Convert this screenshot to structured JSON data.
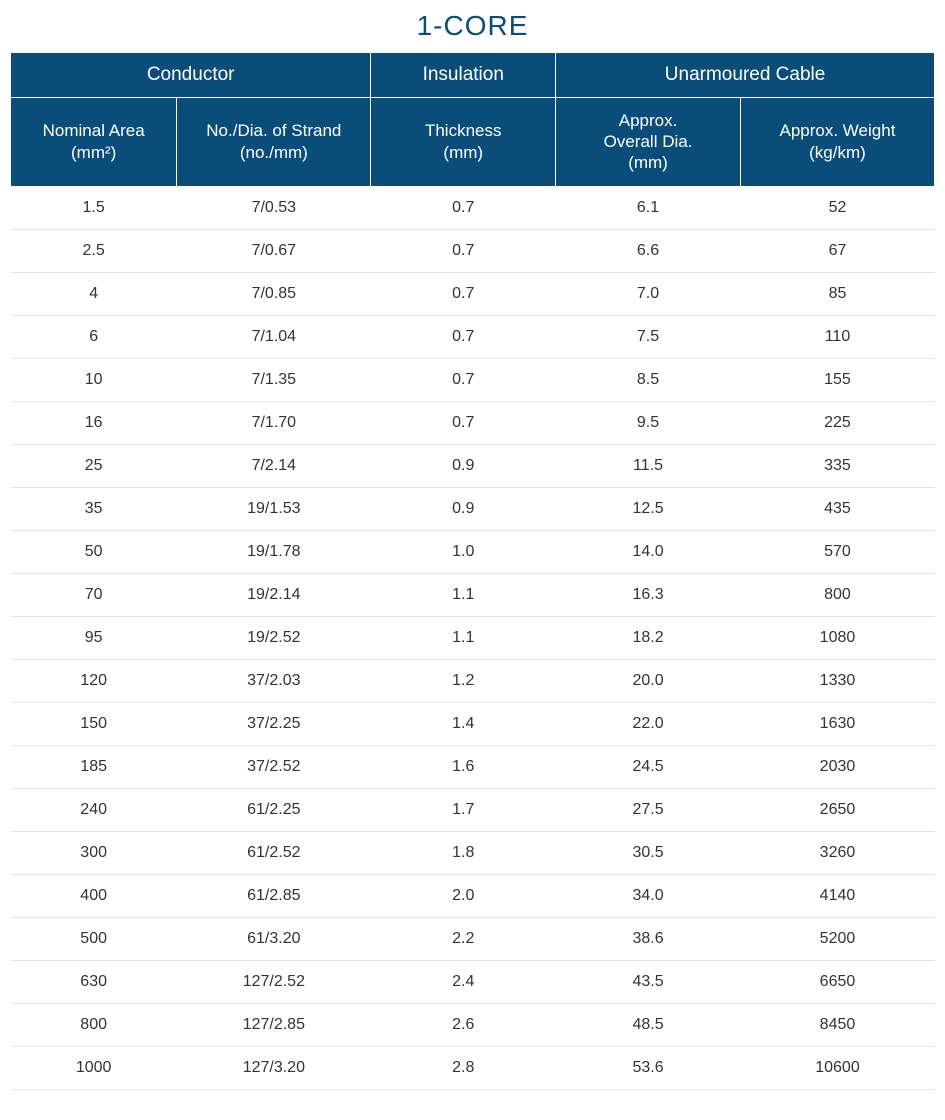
{
  "title": "1-CORE",
  "colors": {
    "header_bg": "#0a4d7a",
    "header_fg": "#ffffff",
    "title_color": "#0a4d7a",
    "row_border": "#e4e4e4",
    "body_text": "#333333",
    "page_bg": "#ffffff"
  },
  "typography": {
    "title_fontsize_pt": 21,
    "group_header_fontsize_pt": 14,
    "sub_header_fontsize_pt": 13,
    "body_fontsize_pt": 12,
    "font_family": "Arial"
  },
  "table": {
    "type": "table",
    "column_widths_pct": [
      18,
      21,
      20,
      20,
      21
    ],
    "group_headers": [
      {
        "label": "Conductor",
        "span": 2
      },
      {
        "label": "Insulation",
        "span": 1
      },
      {
        "label": "Unarmoured Cable",
        "span": 2
      }
    ],
    "sub_headers": [
      "Nominal Area\n(mm²)",
      "No./Dia. of Strand\n(no./mm)",
      "Thickness\n(mm)",
      "Approx.\nOverall Dia.\n(mm)",
      "Approx. Weight\n(kg/km)"
    ],
    "rows": [
      [
        "1.5",
        "7/0.53",
        "0.7",
        "6.1",
        "52"
      ],
      [
        "2.5",
        "7/0.67",
        "0.7",
        "6.6",
        "67"
      ],
      [
        "4",
        "7/0.85",
        "0.7",
        "7.0",
        "85"
      ],
      [
        "6",
        "7/1.04",
        "0.7",
        "7.5",
        "110"
      ],
      [
        "10",
        "7/1.35",
        "0.7",
        "8.5",
        "155"
      ],
      [
        "16",
        "7/1.70",
        "0.7",
        "9.5",
        "225"
      ],
      [
        "25",
        "7/2.14",
        "0.9",
        "11.5",
        "335"
      ],
      [
        "35",
        "19/1.53",
        "0.9",
        "12.5",
        "435"
      ],
      [
        "50",
        "19/1.78",
        "1.0",
        "14.0",
        "570"
      ],
      [
        "70",
        "19/2.14",
        "1.1",
        "16.3",
        "800"
      ],
      [
        "95",
        "19/2.52",
        "1.1",
        "18.2",
        "1080"
      ],
      [
        "120",
        "37/2.03",
        "1.2",
        "20.0",
        "1330"
      ],
      [
        "150",
        "37/2.25",
        "1.4",
        "22.0",
        "1630"
      ],
      [
        "185",
        "37/2.52",
        "1.6",
        "24.5",
        "2030"
      ],
      [
        "240",
        "61/2.25",
        "1.7",
        "27.5",
        "2650"
      ],
      [
        "300",
        "61/2.52",
        "1.8",
        "30.5",
        "3260"
      ],
      [
        "400",
        "61/2.85",
        "2.0",
        "34.0",
        "4140"
      ],
      [
        "500",
        "61/3.20",
        "2.2",
        "38.6",
        "5200"
      ],
      [
        "630",
        "127/2.52",
        "2.4",
        "43.5",
        "6650"
      ],
      [
        "800",
        "127/2.85",
        "2.6",
        "48.5",
        "8450"
      ],
      [
        "1000",
        "127/3.20",
        "2.8",
        "53.6",
        "10600"
      ]
    ]
  }
}
